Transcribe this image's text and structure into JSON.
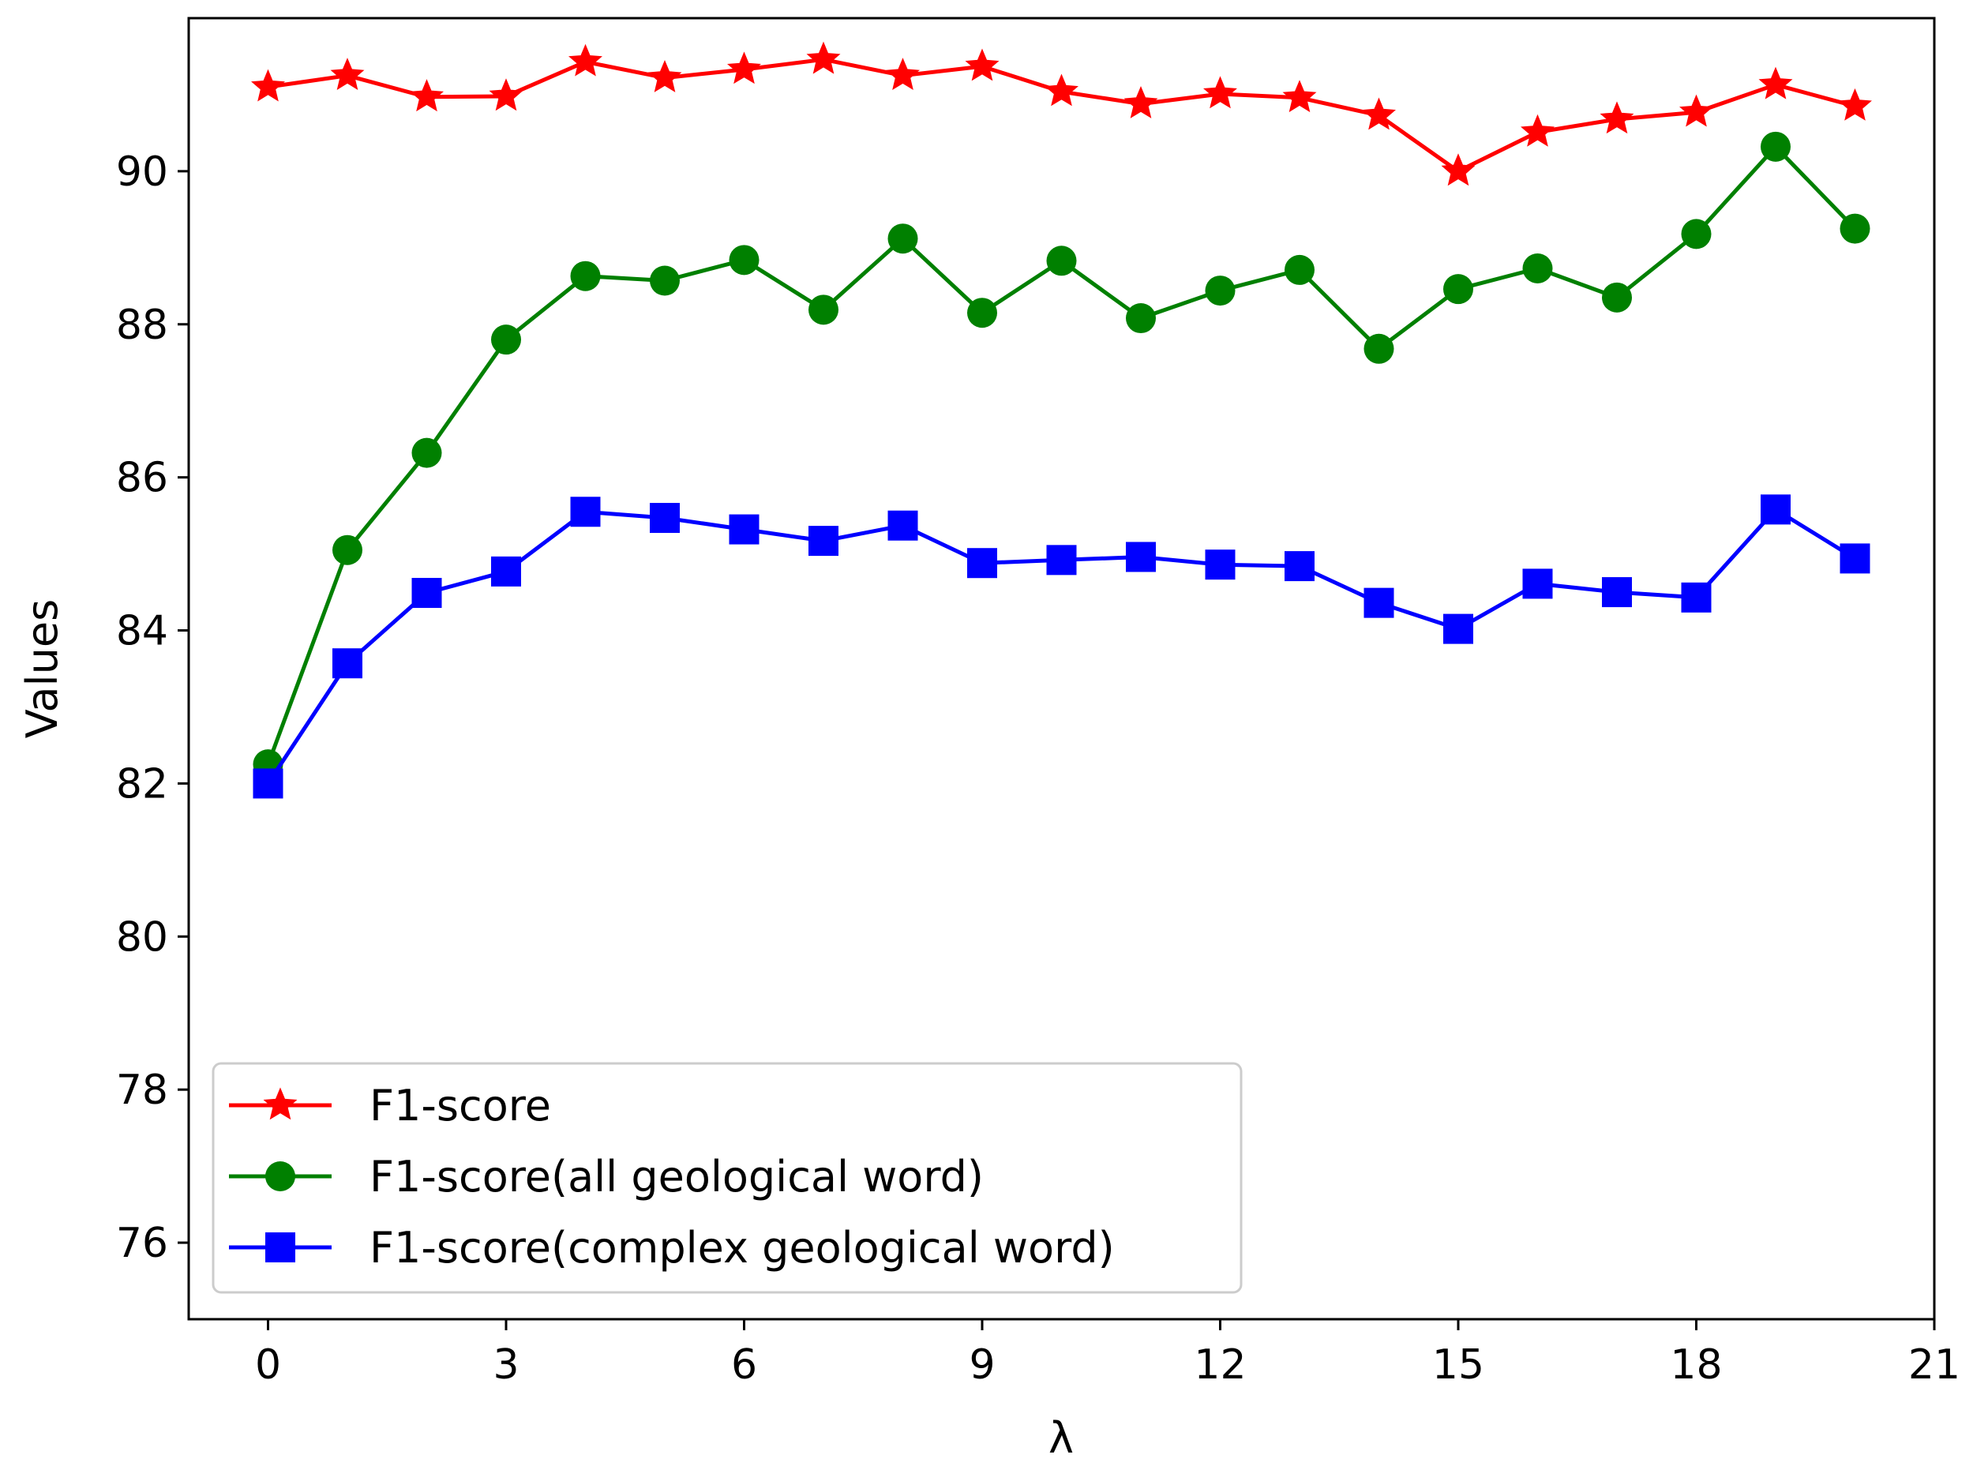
{
  "chart_data": {
    "type": "line",
    "title": "",
    "xlabel": "λ",
    "ylabel": "Values",
    "xlim": [
      -1,
      21
    ],
    "ylim": [
      75,
      92
    ],
    "xticks": [
      0,
      3,
      6,
      9,
      12,
      15,
      18,
      21
    ],
    "yticks": [
      76,
      78,
      80,
      82,
      84,
      86,
      88,
      90
    ],
    "grid": false,
    "legend_position": "lower-left",
    "x": [
      0,
      1,
      2,
      3,
      4,
      5,
      6,
      7,
      8,
      9,
      10,
      11,
      12,
      13,
      14,
      15,
      16,
      17,
      18,
      19,
      20
    ],
    "series": [
      {
        "name": "F1-score",
        "color": "#ff0000",
        "marker": "star",
        "values": [
          91.1,
          91.25,
          90.97,
          90.98,
          91.43,
          91.22,
          91.33,
          91.46,
          91.25,
          91.37,
          91.04,
          90.88,
          91.01,
          90.96,
          90.73,
          90.0,
          90.51,
          90.68,
          90.77,
          91.13,
          90.85
        ]
      },
      {
        "name": "F1-score(all geological word)",
        "color": "#008000",
        "marker": "circle",
        "values": [
          82.25,
          85.05,
          86.32,
          87.8,
          88.63,
          88.57,
          88.84,
          88.19,
          89.12,
          88.15,
          88.83,
          88.08,
          88.44,
          88.71,
          87.68,
          88.46,
          88.73,
          88.35,
          89.18,
          90.32,
          89.25
        ]
      },
      {
        "name": "F1-score(complex geological word)",
        "color": "#0000ff",
        "marker": "square",
        "values": [
          82.0,
          83.57,
          84.49,
          84.77,
          85.55,
          85.47,
          85.32,
          85.17,
          85.37,
          84.88,
          84.92,
          84.96,
          84.86,
          84.84,
          84.36,
          84.02,
          84.61,
          84.5,
          84.43,
          85.58,
          84.94
        ]
      }
    ]
  }
}
